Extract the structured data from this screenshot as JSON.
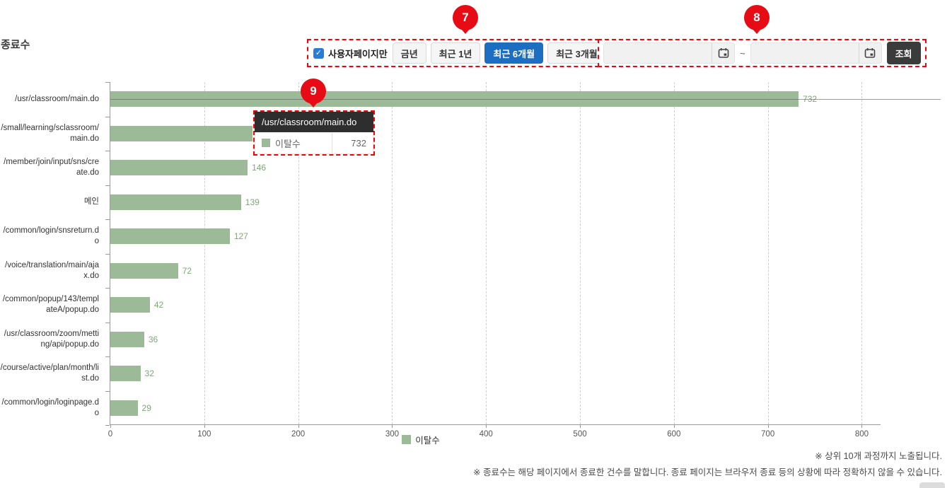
{
  "page": {
    "title": "종료수",
    "notes": [
      "※ 상위 10개 과정까지 노출됩니다.",
      "※ 종료수는 해당 페이지에서 종료한 건수를 말합니다. 종료 페이지는 브라우저 종료 등의 상황에 따라 정확하지 않을 수 있습니다."
    ]
  },
  "filters": {
    "checkbox_label": "사용자페이지만",
    "checkbox_checked": true,
    "period_buttons": [
      {
        "label": "금년",
        "active": false
      },
      {
        "label": "최근 1년",
        "active": false
      },
      {
        "label": "최근 6개월",
        "active": true
      },
      {
        "label": "최근 3개월",
        "active": false
      }
    ],
    "date_from_value": "",
    "date_to_value": "",
    "range_separator": "~",
    "search_button_label": "조회"
  },
  "annotations": {
    "badges": [
      {
        "number": "7"
      },
      {
        "number": "8"
      },
      {
        "number": "9"
      }
    ]
  },
  "tooltip": {
    "title": "/usr/classroom/main.do",
    "series_name": "이탈수",
    "value": "732",
    "marker_color": "#9cba97"
  },
  "chart_data": {
    "type": "bar",
    "orientation": "horizontal",
    "title": "종료수",
    "series_name": "이탈수",
    "legend": [
      "이탈수"
    ],
    "legend_position": "bottom",
    "categories": [
      "/usr/classroom/main.do",
      "/small/learning/sclassroom/main.do",
      "/member/join/input/sns/create.do",
      "메인",
      "/common/login/snsreturn.do",
      "/voice/translation/main/ajax.do",
      "/common/popup/143/templateA/popup.do",
      "/usr/classroom/zoom/metting/api/popup.do",
      "/course/active/plan/month/list.do",
      "/common/login/loginpage.do"
    ],
    "values": [
      732,
      151,
      146,
      139,
      127,
      72,
      42,
      36,
      32,
      29
    ],
    "xlim": [
      0,
      800
    ],
    "x_ticks": [
      0,
      100,
      200,
      300,
      400,
      500,
      600,
      700,
      800
    ],
    "grid": true,
    "bar_color": "#9cba97",
    "value_label_color": "#7da877",
    "highlighted_category_index": 0
  }
}
